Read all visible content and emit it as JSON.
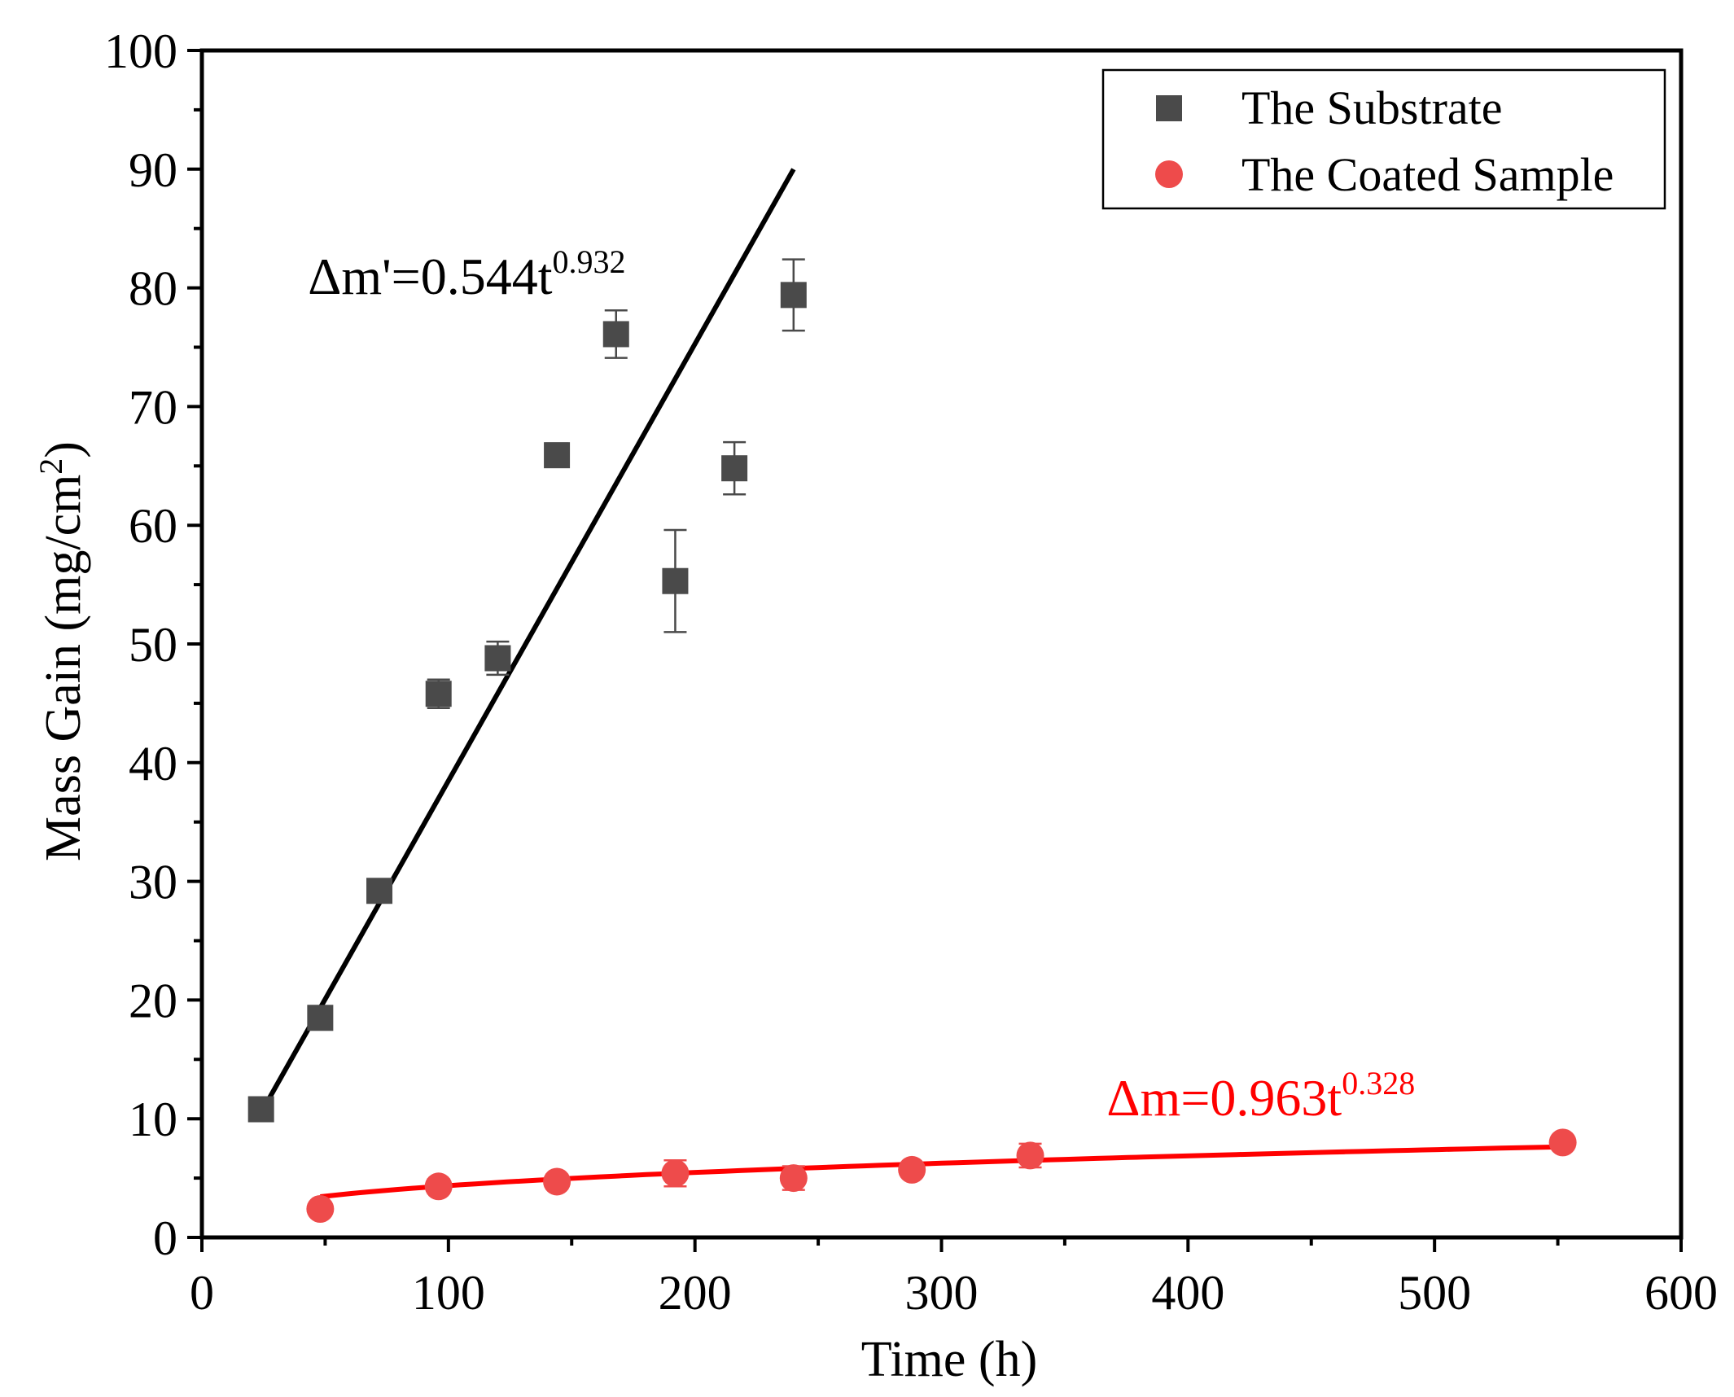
{
  "chart_data": {
    "type": "scatter",
    "title": "",
    "xlabel": "Time (h)",
    "ylabel_main": "Mass Gain (mg/cm",
    "ylabel_sup": "2",
    "ylabel_end": ")",
    "xlim": [
      0,
      600
    ],
    "ylim": [
      0,
      100
    ],
    "x_ticks": [
      0,
      100,
      200,
      300,
      400,
      500,
      600
    ],
    "y_ticks": [
      0,
      10,
      20,
      30,
      40,
      50,
      60,
      70,
      80,
      90,
      100
    ],
    "grid": false,
    "legend_position": "top-right",
    "series": [
      {
        "name": "The Substrate",
        "marker": "square",
        "color": "#4a4a4a",
        "x": [
          24,
          48,
          72,
          96,
          120,
          144,
          168,
          192,
          216,
          240
        ],
        "y": [
          10.8,
          18.5,
          29.2,
          45.8,
          48.8,
          65.9,
          76.1,
          55.3,
          64.8,
          79.4
        ],
        "err": [
          0.8,
          0.6,
          0.6,
          1.2,
          1.4,
          1.0,
          2.0,
          4.3,
          2.2,
          3.0
        ]
      },
      {
        "name": "The Coated Sample",
        "marker": "circle",
        "color": "#ee4b4b",
        "x": [
          48,
          96,
          144,
          192,
          240,
          288,
          336,
          552
        ],
        "y": [
          2.4,
          4.3,
          4.7,
          5.4,
          5.0,
          5.7,
          6.9,
          8.0
        ],
        "err": [
          0.4,
          0.6,
          0.6,
          1.1,
          1.0,
          0.5,
          1.0,
          0.4
        ]
      }
    ],
    "fits": [
      {
        "series": "The Substrate",
        "color": "#000000",
        "x_range": [
          24,
          240
        ],
        "y_range": [
          10.5,
          90.0
        ],
        "equation_base": "Δm'=0.544t",
        "equation_exp": "0.932"
      },
      {
        "series": "The Coated Sample",
        "color": "#ff0000",
        "coef": 0.963,
        "power": 0.328,
        "x_range": [
          48,
          552
        ],
        "equation_base": "Δm=0.963t",
        "equation_exp": "0.328"
      }
    ]
  }
}
